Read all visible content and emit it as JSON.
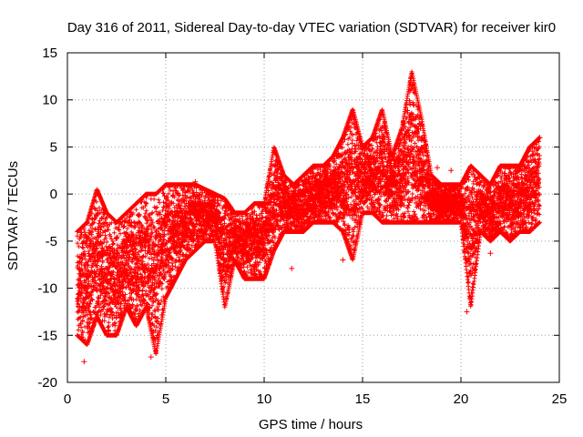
{
  "chart_data": {
    "type": "scatter",
    "title": "Day 316 of 2011, Sidereal Day-to-day VTEC variation (SDTVAR) for receiver kir0",
    "xlabel": "GPS time / hours",
    "ylabel": "SDTVAR / TECUs",
    "xlim": [
      0,
      25
    ],
    "ylim": [
      -20,
      15
    ],
    "xticks": [
      0,
      5,
      10,
      15,
      20,
      25
    ],
    "yticks": [
      -20,
      -15,
      -10,
      -5,
      0,
      5,
      10,
      15
    ],
    "grid": true,
    "marker": "+",
    "color": "#ff0000",
    "series": [
      {
        "name": "SDTVAR",
        "envelope_x": [
          0.5,
          1.0,
          1.5,
          2.0,
          2.5,
          3.0,
          3.5,
          4.0,
          4.5,
          5.0,
          5.5,
          6.0,
          6.5,
          7.0,
          7.5,
          8.0,
          8.5,
          9.0,
          9.5,
          10.0,
          10.5,
          11.0,
          11.5,
          12.0,
          12.5,
          13.0,
          13.5,
          14.0,
          14.5,
          15.0,
          15.5,
          16.0,
          16.5,
          17.0,
          17.5,
          18.0,
          18.5,
          19.0,
          19.5,
          20.0,
          20.5,
          21.0,
          21.5,
          22.0,
          22.5,
          23.0,
          23.5,
          24.0
        ],
        "envelope_high": [
          -4,
          -3,
          0.5,
          -2,
          -3,
          -2,
          -1,
          0,
          0,
          1,
          1,
          1,
          1,
          0.5,
          0,
          -0.5,
          -2,
          -2,
          -1,
          -1,
          5,
          2,
          1,
          2,
          3,
          3,
          4,
          6,
          9,
          5,
          6,
          9,
          4,
          7,
          13,
          8,
          2,
          1,
          1,
          1,
          3,
          2,
          1,
          3,
          3,
          3,
          5,
          6
        ],
        "envelope_low": [
          -15,
          -16,
          -13,
          -15,
          -15,
          -12,
          -14,
          -12,
          -17,
          -11,
          -9,
          -7,
          -6,
          -5,
          -5,
          -12,
          -7,
          -9,
          -9,
          -9,
          -6,
          -4,
          -4,
          -4,
          -3,
          -3,
          -3,
          -4,
          -7,
          -2,
          -2,
          -3,
          -3,
          -3,
          -3,
          -3,
          -3,
          -3,
          -3,
          -3,
          -12,
          -4,
          -5,
          -4,
          -5,
          -4,
          -4,
          -3
        ],
        "outliers": [
          [
            0.85,
            -17.8
          ],
          [
            4.25,
            -17.3
          ],
          [
            6.5,
            1.3
          ],
          [
            11.4,
            -7.9
          ],
          [
            14.0,
            -7.0
          ],
          [
            18.8,
            2.8
          ],
          [
            19.5,
            2.5
          ],
          [
            20.3,
            -12.5
          ],
          [
            21.5,
            -6.3
          ],
          [
            24.0,
            6.0
          ]
        ]
      }
    ]
  }
}
